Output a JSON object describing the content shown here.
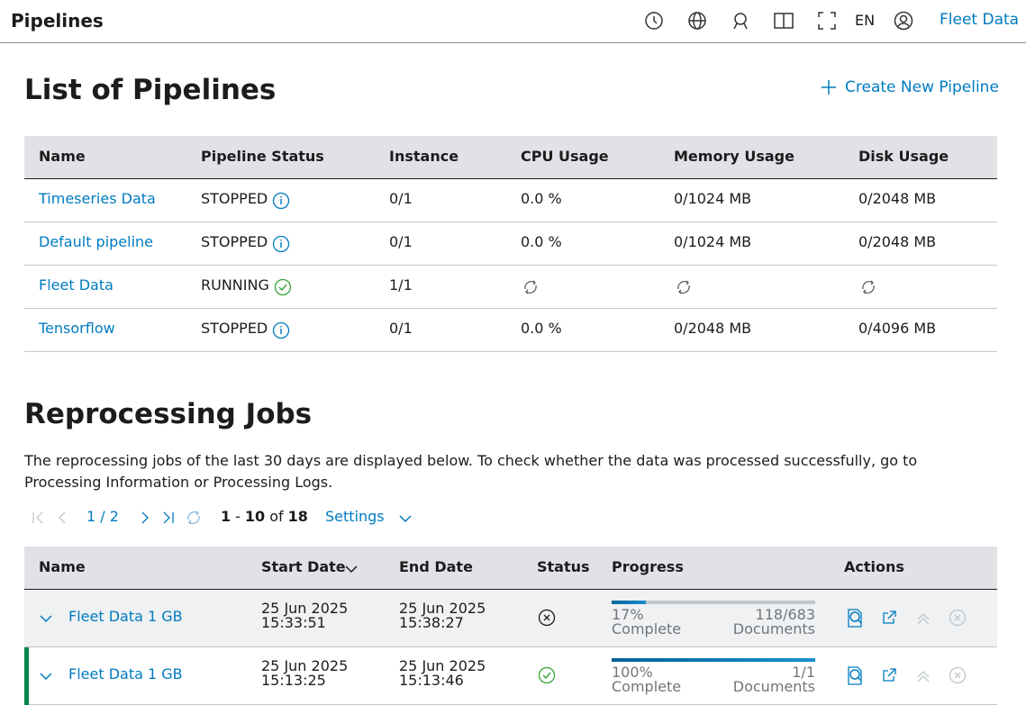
{
  "header": {
    "title": "Pipelines",
    "language": "EN",
    "app_name": "Fleet Data"
  },
  "pipelines": {
    "title": "List of Pipelines",
    "create_button": "Create New Pipeline",
    "columns": [
      "Name",
      "Pipeline Status",
      "Instance",
      "CPU Usage",
      "Memory Usage",
      "Disk Usage"
    ],
    "rows": [
      [
        "Timeseries Data",
        "STOPPED",
        "0/1",
        "0.0 %",
        "0/1024 MB",
        "0/2048 MB"
      ],
      [
        "Default pipeline",
        "STOPPED",
        "0/1",
        "0.0 %",
        "0/1024 MB",
        "0/2048 MB"
      ],
      [
        "Fleet Data",
        "RUNNING",
        "1/1",
        null,
        null,
        null
      ],
      [
        "Tensorflow",
        "STOPPED",
        "0/1",
        "0.0 %",
        "0/2048 MB",
        "0/4096 MB"
      ]
    ]
  },
  "jobs": {
    "title": "Reprocessing Jobs",
    "description": "The reprocessing jobs of the last 30 days are displayed below. To check whether the data was processed successfully, go to Processing Information or Processing Logs.",
    "pagination": {
      "page": "1 / 2",
      "range_start": "1",
      "range_separator": "-",
      "range_end": "10",
      "of": "of",
      "total": "18",
      "settings": "Settings"
    },
    "columns": [
      "Name",
      "Start Date",
      "End Date",
      "Status",
      "Progress",
      "Actions"
    ],
    "rows": [
      {
        "name": "Fleet Data 1 GB",
        "start_date": "25 Jun 2025",
        "start_time": "15:33:51",
        "end_date": "25 Jun 2025",
        "end_time": "15:38:27",
        "status": "failed",
        "progress": {
          "value": 17,
          "label": "17%"
        },
        "complete": "Complete",
        "count": "118/683",
        "documents": "Documents"
      },
      {
        "name": "Fleet Data 1 GB",
        "start_date": "25 Jun 2025",
        "start_time": "15:13:25",
        "end_date": "25 Jun 2025",
        "end_time": "15:13:46",
        "status": "success",
        "progress": {
          "value": 100,
          "label": "100%"
        },
        "complete": "Complete",
        "count": "1/1",
        "documents": "Documents"
      }
    ]
  }
}
